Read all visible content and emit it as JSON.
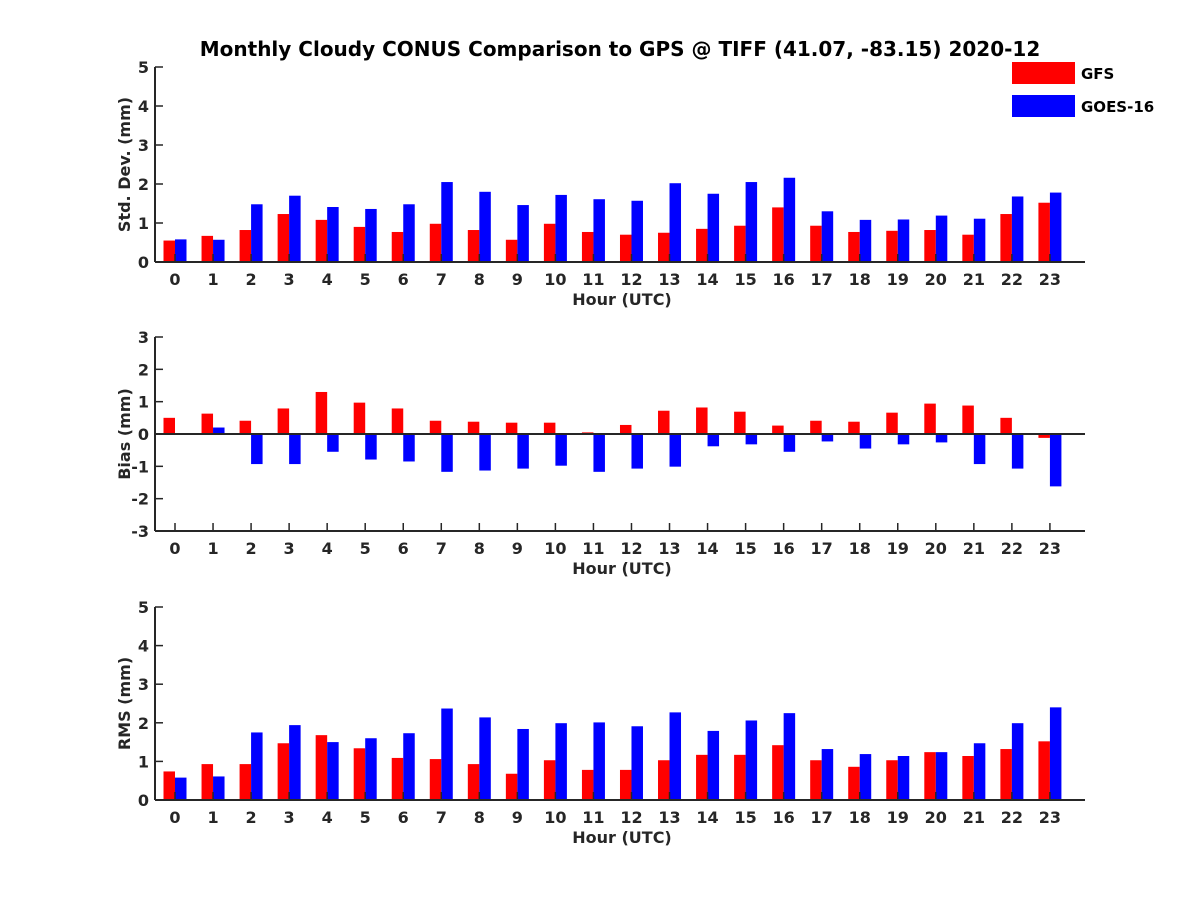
{
  "title": "Monthly Cloudy CONUS Comparison to GPS @ TIFF (41.07, -83.15) 2020-12",
  "legend": [
    {
      "name": "GFS",
      "color": "#ff0000"
    },
    {
      "name": "GOES-16",
      "color": "#0000ff"
    }
  ],
  "chart_data": [
    {
      "type": "bar",
      "categories": [
        "0",
        "1",
        "2",
        "3",
        "4",
        "5",
        "6",
        "7",
        "8",
        "9",
        "10",
        "11",
        "12",
        "13",
        "14",
        "15",
        "16",
        "17",
        "18",
        "19",
        "20",
        "21",
        "22",
        "23"
      ],
      "xlabel": "Hour (UTC)",
      "ylabel": "Std. Dev. (mm)",
      "ylim": [
        0,
        5
      ],
      "yticks": [
        0,
        1,
        2,
        3,
        4,
        5
      ],
      "series": [
        {
          "name": "GFS",
          "color": "#ff0000",
          "values": [
            0.55,
            0.67,
            0.82,
            1.23,
            1.08,
            0.9,
            0.77,
            0.98,
            0.82,
            0.57,
            0.98,
            0.77,
            0.7,
            0.75,
            0.85,
            0.93,
            1.4,
            0.93,
            0.77,
            0.8,
            0.82,
            0.7,
            1.23,
            1.52
          ]
        },
        {
          "name": "GOES-16",
          "color": "#0000ff",
          "values": [
            0.58,
            0.57,
            1.48,
            1.7,
            1.41,
            1.36,
            1.48,
            2.05,
            1.8,
            1.46,
            1.72,
            1.61,
            1.57,
            2.02,
            1.75,
            2.05,
            2.16,
            1.3,
            1.08,
            1.09,
            1.19,
            1.11,
            1.68,
            1.78
          ]
        }
      ]
    },
    {
      "type": "bar",
      "categories": [
        "0",
        "1",
        "2",
        "3",
        "4",
        "5",
        "6",
        "7",
        "8",
        "9",
        "10",
        "11",
        "12",
        "13",
        "14",
        "15",
        "16",
        "17",
        "18",
        "19",
        "20",
        "21",
        "22",
        "23"
      ],
      "xlabel": "Hour (UTC)",
      "ylabel": "Bias (mm)",
      "ylim": [
        -3,
        3
      ],
      "yticks": [
        -3,
        -2,
        -1,
        0,
        1,
        2,
        3
      ],
      "series": [
        {
          "name": "GFS",
          "color": "#ff0000",
          "values": [
            0.5,
            0.63,
            0.41,
            0.79,
            1.3,
            0.97,
            0.79,
            0.41,
            0.38,
            0.35,
            0.35,
            0.05,
            0.28,
            0.72,
            0.82,
            0.69,
            0.26,
            0.41,
            0.38,
            0.66,
            0.94,
            0.88,
            0.5,
            -0.12
          ]
        },
        {
          "name": "GOES-16",
          "color": "#0000ff",
          "values": [
            0.02,
            0.2,
            -0.93,
            -0.93,
            -0.55,
            -0.79,
            -0.85,
            -1.17,
            -1.13,
            -1.07,
            -0.98,
            -1.17,
            -1.07,
            -1.01,
            -0.38,
            -0.32,
            -0.55,
            -0.23,
            -0.45,
            -0.32,
            -0.26,
            -0.93,
            -1.07,
            -1.62
          ]
        }
      ]
    },
    {
      "type": "bar",
      "categories": [
        "0",
        "1",
        "2",
        "3",
        "4",
        "5",
        "6",
        "7",
        "8",
        "9",
        "10",
        "11",
        "12",
        "13",
        "14",
        "15",
        "16",
        "17",
        "18",
        "19",
        "20",
        "21",
        "22",
        "23"
      ],
      "xlabel": "Hour (UTC)",
      "ylabel": "RMS (mm)",
      "ylim": [
        0,
        5
      ],
      "yticks": [
        0,
        1,
        2,
        3,
        4,
        5
      ],
      "series": [
        {
          "name": "GFS",
          "color": "#ff0000",
          "values": [
            0.74,
            0.93,
            0.93,
            1.47,
            1.68,
            1.34,
            1.09,
            1.06,
            0.93,
            0.68,
            1.03,
            0.78,
            0.78,
            1.03,
            1.17,
            1.17,
            1.42,
            1.03,
            0.86,
            1.03,
            1.24,
            1.14,
            1.32,
            1.52
          ]
        },
        {
          "name": "GOES-16",
          "color": "#0000ff",
          "values": [
            0.58,
            0.61,
            1.75,
            1.94,
            1.5,
            1.6,
            1.73,
            2.37,
            2.14,
            1.84,
            1.99,
            2.01,
            1.91,
            2.27,
            1.79,
            2.06,
            2.25,
            1.32,
            1.19,
            1.14,
            1.24,
            1.47,
            1.99,
            2.4
          ]
        }
      ]
    }
  ]
}
